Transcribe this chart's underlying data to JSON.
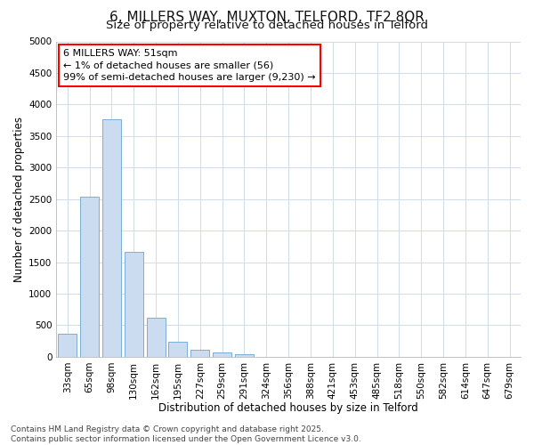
{
  "title1": "6, MILLERS WAY, MUXTON, TELFORD, TF2 8QR",
  "title2": "Size of property relative to detached houses in Telford",
  "xlabel": "Distribution of detached houses by size in Telford",
  "ylabel": "Number of detached properties",
  "categories": [
    "33sqm",
    "65sqm",
    "98sqm",
    "130sqm",
    "162sqm",
    "195sqm",
    "227sqm",
    "259sqm",
    "291sqm",
    "324sqm",
    "356sqm",
    "388sqm",
    "421sqm",
    "453sqm",
    "485sqm",
    "518sqm",
    "550sqm",
    "582sqm",
    "614sqm",
    "647sqm",
    "679sqm"
  ],
  "values": [
    370,
    2540,
    3770,
    1660,
    620,
    240,
    105,
    65,
    45,
    0,
    0,
    0,
    0,
    0,
    0,
    0,
    0,
    0,
    0,
    0,
    0
  ],
  "bar_color": "#ccdcf0",
  "bar_edge_color": "#7aafd4",
  "annotation_box_text": "6 MILLERS WAY: 51sqm\n← 1% of detached houses are smaller (56)\n99% of semi-detached houses are larger (9,230) →",
  "ylim": [
    0,
    5000
  ],
  "yticks": [
    0,
    500,
    1000,
    1500,
    2000,
    2500,
    3000,
    3500,
    4000,
    4500,
    5000
  ],
  "footer": "Contains HM Land Registry data © Crown copyright and database right 2025.\nContains public sector information licensed under the Open Government Licence v3.0.",
  "bg_color": "#ffffff",
  "grid_color": "#d0dcea",
  "title_fontsize": 11,
  "subtitle_fontsize": 9.5,
  "axis_label_fontsize": 8.5,
  "tick_fontsize": 7.5,
  "annotation_fontsize": 8,
  "footer_fontsize": 6.5
}
